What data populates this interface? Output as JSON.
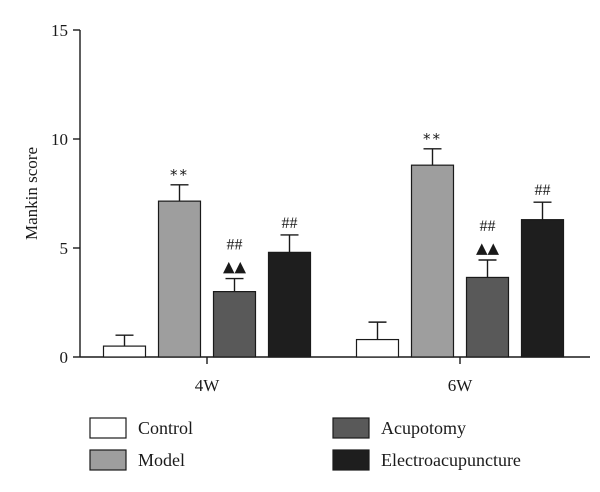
{
  "chart_data": {
    "type": "bar",
    "ylabel": "Mankin score",
    "ylim": [
      0,
      15
    ],
    "yticks": [
      0,
      5,
      10,
      15
    ],
    "grid": false,
    "legend_position": "bottom",
    "categories": [
      "4W",
      "6W"
    ],
    "series": [
      {
        "name": "Control",
        "color": "#ffffff",
        "values": [
          0.5,
          0.8
        ],
        "errors": [
          0.5,
          0.8
        ],
        "annotations": [
          [],
          []
        ]
      },
      {
        "name": "Model",
        "color": "#9e9e9e",
        "values": [
          7.15,
          8.8
        ],
        "errors": [
          0.75,
          0.75
        ],
        "annotations": [
          [
            "**"
          ],
          [
            "**"
          ]
        ]
      },
      {
        "name": "Acupotomy",
        "color": "#595959",
        "values": [
          3.0,
          3.65
        ],
        "errors": [
          0.6,
          0.8
        ],
        "annotations": [
          [
            "##",
            "▲▲"
          ],
          [
            "##",
            "▲▲"
          ]
        ]
      },
      {
        "name": "Electroacupuncture",
        "color": "#1e1e1e",
        "values": [
          4.8,
          6.3
        ],
        "errors": [
          0.8,
          0.8
        ],
        "annotations": [
          [
            "##"
          ],
          [
            "##"
          ]
        ]
      }
    ]
  }
}
